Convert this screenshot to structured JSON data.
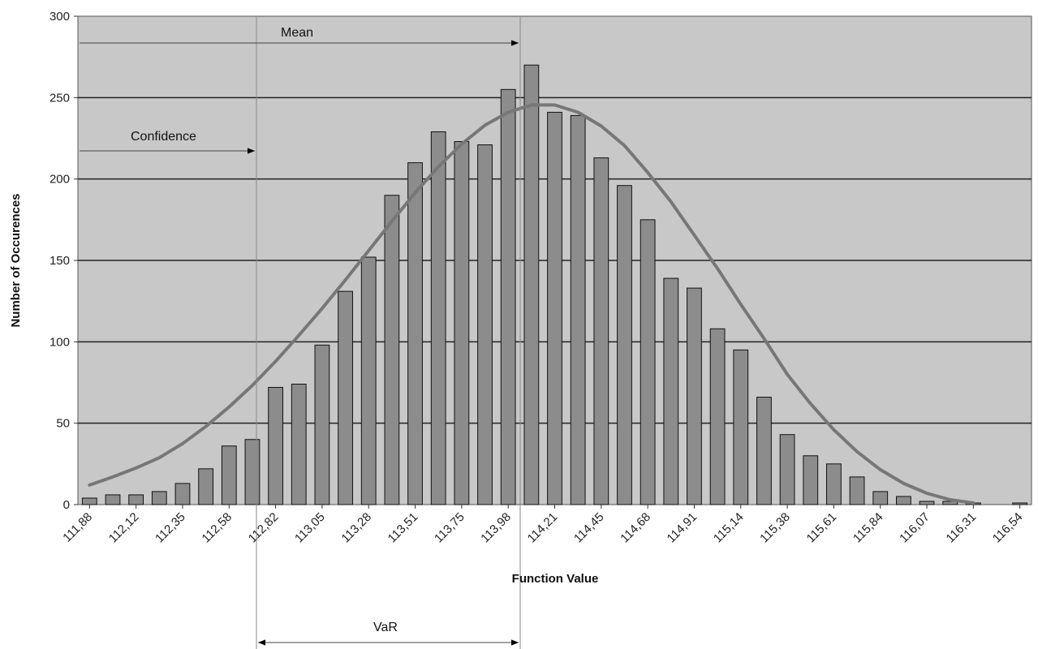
{
  "chart_data": {
    "type": "bar",
    "title": "",
    "xlabel": "Function Value",
    "ylabel": "Number of Occurences",
    "ylim": [
      0,
      300
    ],
    "yticks": [
      0,
      50,
      100,
      150,
      200,
      250,
      300
    ],
    "grid": true,
    "legend": "none",
    "bar_color": "#8c8c8c",
    "plot_background": "#c8c8c8",
    "curve_color": "#777777",
    "xtick_labels": [
      "111,88",
      "112,12",
      "112,35",
      "112,58",
      "112,82",
      "113,05",
      "113,28",
      "113,51",
      "113,75",
      "113,98",
      "114,21",
      "114,45",
      "114,68",
      "114,91",
      "115,14",
      "115,38",
      "115,61",
      "115,84",
      "116,07",
      "116,31",
      "116,54"
    ],
    "values": [
      4,
      6,
      6,
      8,
      13,
      22,
      36,
      40,
      72,
      74,
      98,
      131,
      152,
      190,
      210,
      229,
      223,
      221,
      255,
      270,
      241,
      239,
      213,
      196,
      175,
      139,
      133,
      108,
      95,
      66,
      43,
      30,
      25,
      17,
      8,
      5,
      2,
      2,
      1,
      0,
      1
    ],
    "fitted_curve": [
      12,
      17,
      22.5,
      28.8,
      37.5,
      48,
      60,
      73.2,
      88,
      104,
      120.5,
      138,
      156,
      174,
      191.5,
      207.5,
      221.5,
      233,
      241,
      245.5,
      245.5,
      241,
      232.5,
      220.5,
      204,
      186,
      165.5,
      145,
      123,
      102,
      80,
      62,
      46,
      32.5,
      21.5,
      13,
      7,
      3,
      1
    ],
    "annotations": [
      {
        "text": "Mean",
        "type": "arrow"
      },
      {
        "text": "Confidence",
        "type": "arrow"
      },
      {
        "text": "VaR",
        "type": "double-arrow"
      }
    ]
  }
}
